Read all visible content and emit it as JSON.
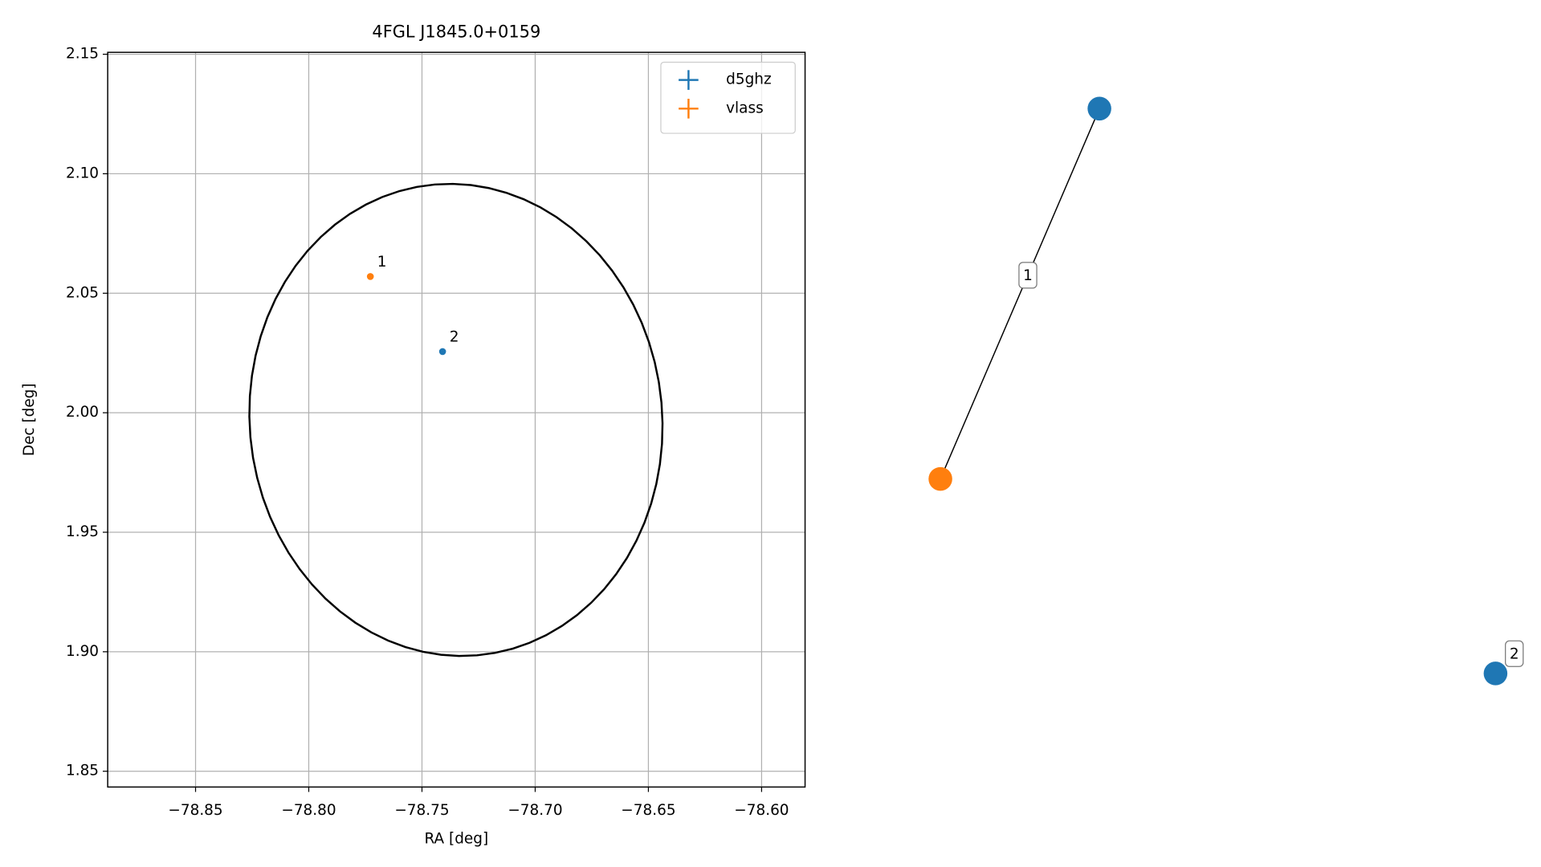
{
  "chart_data": {
    "type": "scatter",
    "title": "4FGL J1845.0+0159",
    "x_label": "RA [deg]",
    "y_label": "Dec [deg]",
    "xlim": [
      -78.8888,
      -78.5808
    ],
    "ylim": [
      1.8434,
      2.1508
    ],
    "xticks": [
      {
        "value": -78.85,
        "label": "−78.85"
      },
      {
        "value": -78.8,
        "label": "−78.80"
      },
      {
        "value": -78.75,
        "label": "−78.75"
      },
      {
        "value": -78.7,
        "label": "−78.70"
      },
      {
        "value": -78.65,
        "label": "−78.65"
      },
      {
        "value": -78.6,
        "label": "−78.60"
      }
    ],
    "yticks": [
      1.85,
      {
        "value": 1.9,
        "label": "1.90"
      },
      1.95,
      {
        "value": 2.0,
        "label": "2.00"
      },
      2.05,
      {
        "value": 2.1,
        "label": "2.10"
      },
      2.15
    ],
    "grid": true,
    "legend": "upper right",
    "series": [
      {
        "name": "d5ghz",
        "color": "#1f77b4",
        "x": [
          -78.7409
        ],
        "values": [
          2.0256
        ],
        "labels": [
          "2"
        ]
      },
      {
        "name": "vlass",
        "color": "#ff7f0e",
        "x": [
          -78.7728
        ],
        "values": [
          2.057
        ],
        "labels": [
          "1"
        ]
      }
    ],
    "ellipse": {
      "center": [
        -78.735,
        1.997
      ],
      "semi_major": 0.099,
      "semi_minor": 0.091,
      "angle": 100,
      "color": "#000000"
    }
  },
  "graph": {
    "nodes": [
      {
        "color": "#1f77b4"
      },
      {
        "color": "#ff7f0e"
      },
      {
        "color": "#1f77b4"
      }
    ],
    "edges": [
      {
        "source": 0,
        "target": 1,
        "label": "1"
      },
      {
        "source": 2,
        "target": 2,
        "label": "2"
      }
    ]
  }
}
